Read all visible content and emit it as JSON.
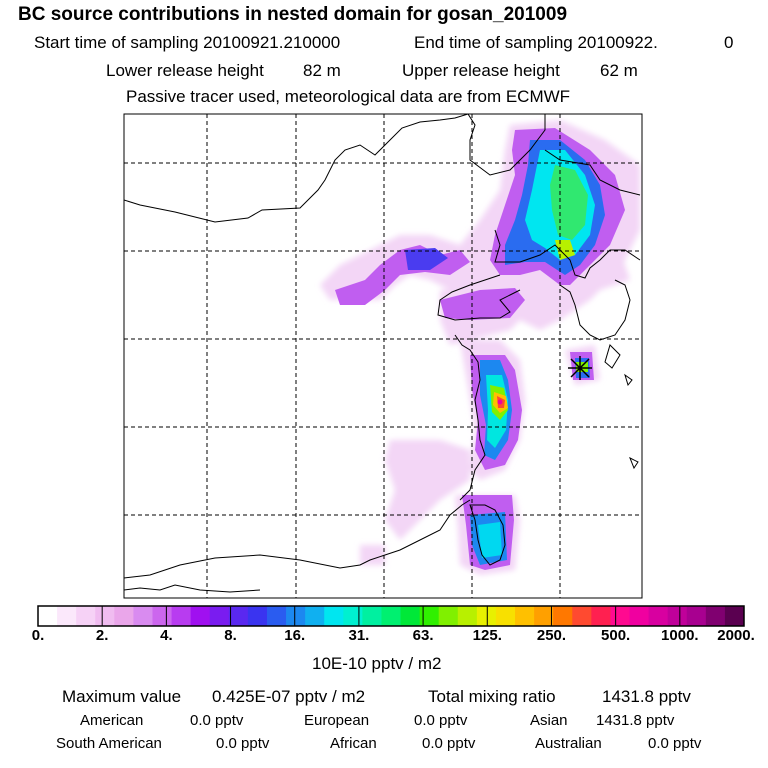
{
  "header": {
    "title": "BC  source contributions in nested domain for gosan_201009",
    "start_label": "Start time of sampling 20100921.210000",
    "end_label": "End time of sampling 20100922.",
    "end_value": "0",
    "lower_label": "Lower release height",
    "lower_value": "82 m",
    "upper_label": "Upper release height",
    "upper_value": "62 m",
    "note": "Passive tracer used, meteorological data are from ECMWF"
  },
  "colorbar": {
    "colors": [
      "#ffffff",
      "#fbe8fb",
      "#f6d2f6",
      "#f0bcf0",
      "#eaa6ea",
      "#d98bf0",
      "#cc66ee",
      "#b83cf0",
      "#a010f0",
      "#7a1cf0",
      "#5a28f0",
      "#3a34f0",
      "#2a5cf0",
      "#1c88f0",
      "#10b0f0",
      "#00e6f0",
      "#00f0d0",
      "#00f0a0",
      "#00f070",
      "#00e838",
      "#30f000",
      "#80f000",
      "#b8f000",
      "#e8f000",
      "#f8e000",
      "#ffc000",
      "#ffa000",
      "#ff7800",
      "#ff4a30",
      "#ff2050",
      "#ff0a90",
      "#f000a0",
      "#d800a0",
      "#c0009a",
      "#a80090",
      "#800070",
      "#5a0050"
    ],
    "labels": [
      "0.",
      "2.",
      "4.",
      "8.",
      "16.",
      "31.",
      "63.",
      "125.",
      "250.",
      "500.",
      "1000.",
      "2000."
    ],
    "unit": "10E-10 pptv / m2"
  },
  "summary": {
    "max_label": "Maximum value",
    "max_value": "0.425E-07 pptv / m2",
    "total_label": "Total mixing ratio",
    "total_value": "1431.8 pptv",
    "regions": [
      {
        "name": "American",
        "value": "0.0 pptv"
      },
      {
        "name": "European",
        "value": "0.0 pptv"
      },
      {
        "name": "Asian",
        "value": "1431.8 pptv"
      },
      {
        "name": "South American",
        "value": "0.0 pptv"
      },
      {
        "name": "African",
        "value": "0.0 pptv"
      },
      {
        "name": "Australian",
        "value": "0.0 pptv"
      }
    ]
  },
  "map": {
    "receptor_icon": "asterisk-icon"
  }
}
